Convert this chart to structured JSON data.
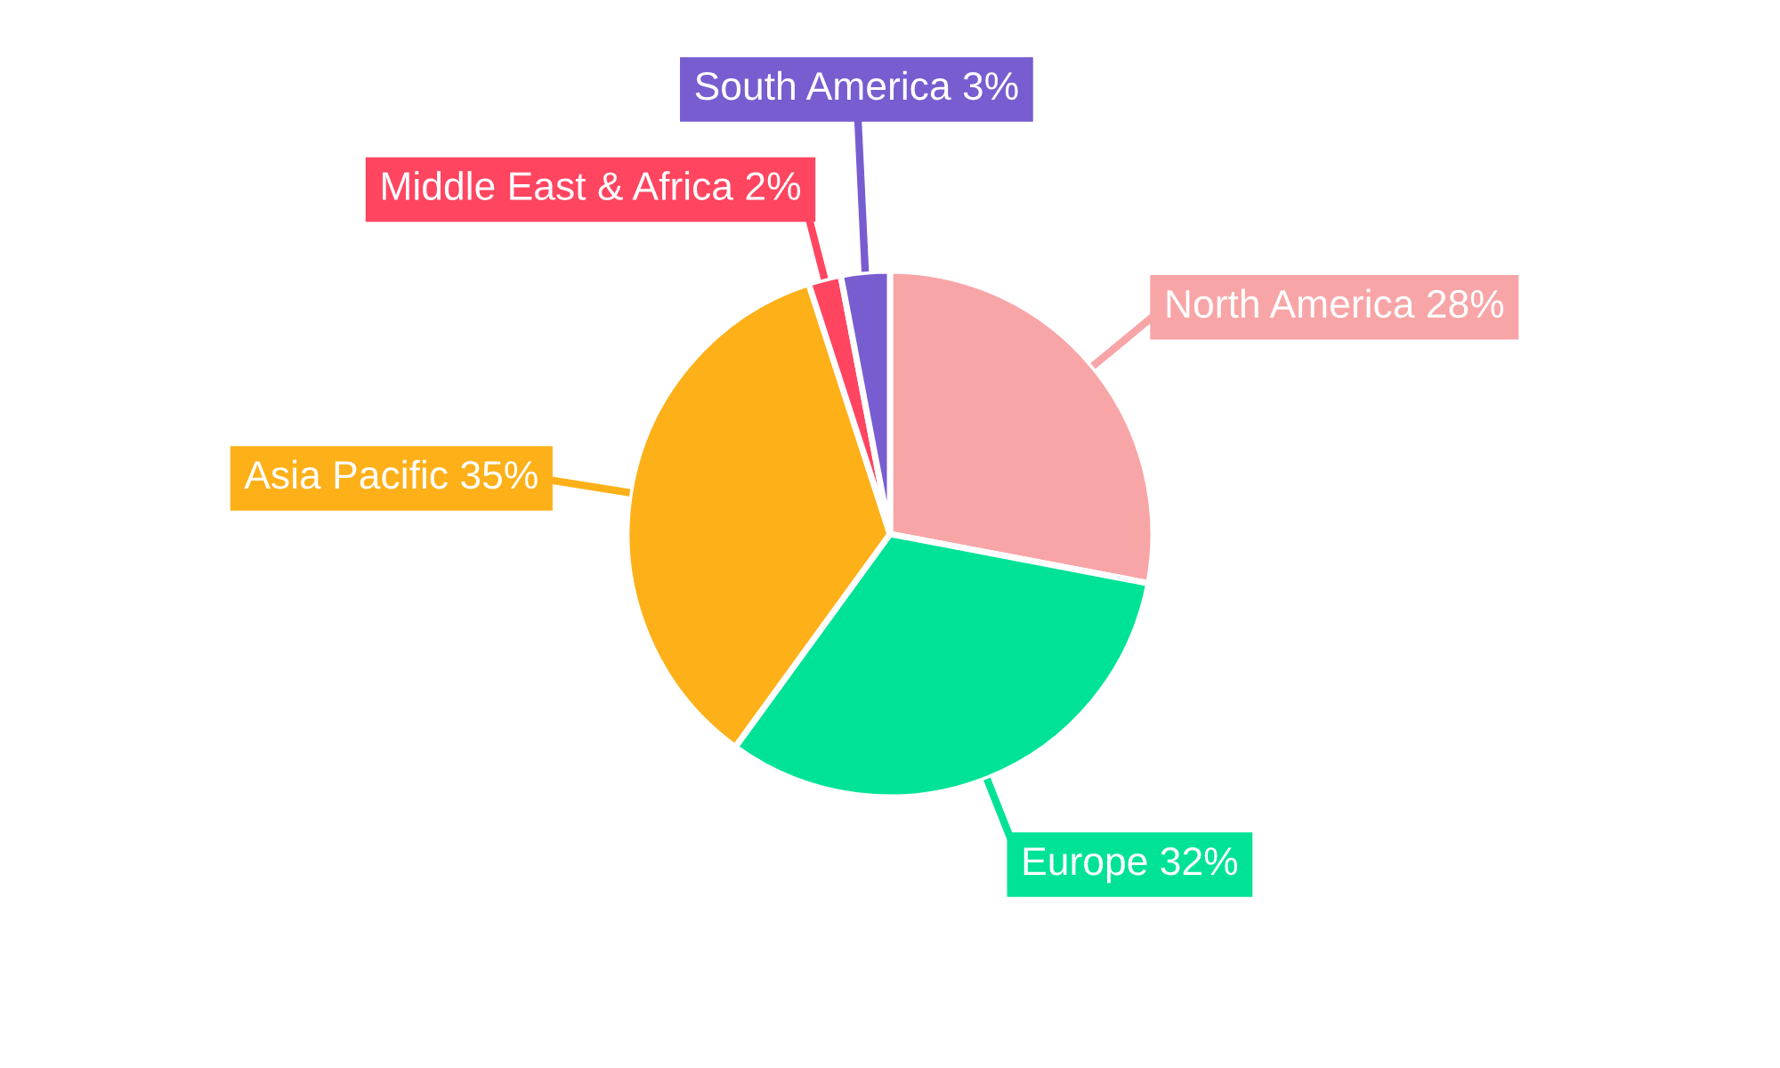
{
  "chart_data": {
    "type": "pie",
    "categories": [
      "North America",
      "Europe",
      "Asia Pacific",
      "Middle East & Africa",
      "South America"
    ],
    "values": [
      28,
      32,
      35,
      2,
      3
    ],
    "value_labels": [
      "28%",
      "32%",
      "35%",
      "2%",
      "3%"
    ],
    "colors": [
      "#f8a5a7",
      "#00e396",
      "#feb019",
      "#ff4560",
      "#775dd0"
    ],
    "legend": false
  }
}
